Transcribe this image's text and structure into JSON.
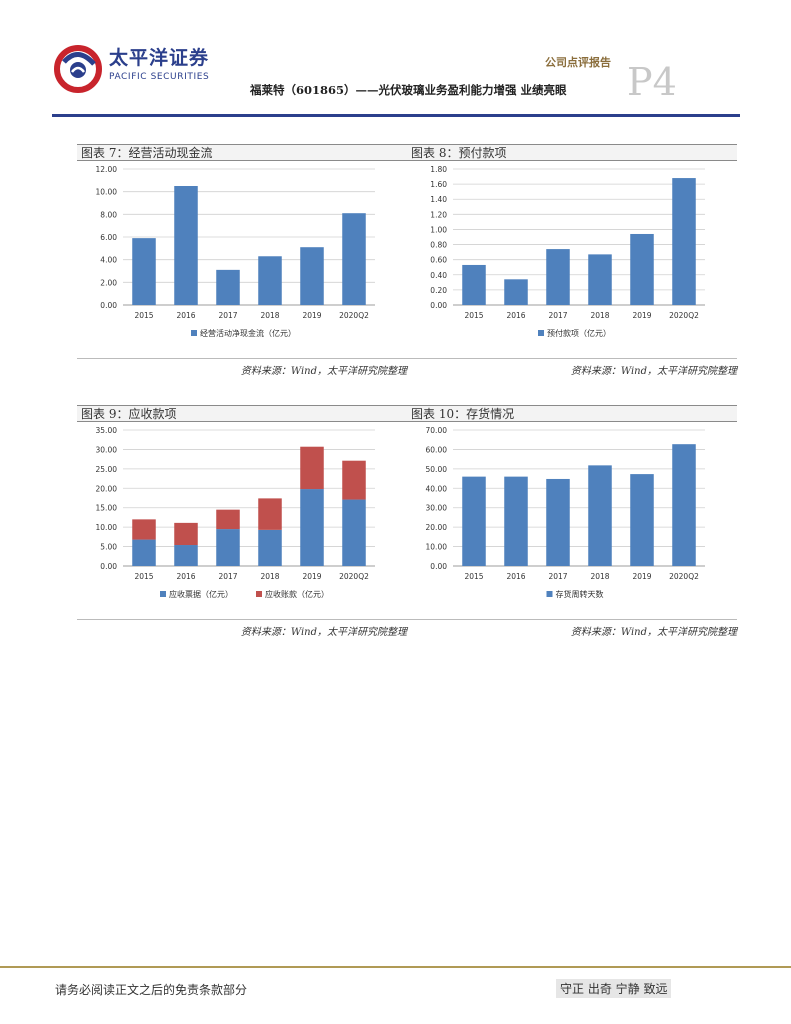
{
  "header": {
    "logo_cn": "太平洋证券",
    "logo_en": "PACIFIC SECURITIES",
    "report_type": "公司点评报告",
    "page": "P4",
    "title": "福莱特（601865）——光伏玻璃业务盈利能力增强  业绩亮眼"
  },
  "footer": {
    "disclaimer": "请务必阅读正文之后的免责条款部分",
    "motto": "守正 出奇 宁静 致远"
  },
  "colors": {
    "blue": "#4f81bd",
    "red": "#c0504d",
    "brand": "#2b3f8c"
  },
  "chart_data": [
    {
      "id": "c7",
      "type": "bar",
      "label": "图表 7：经营活动现金流",
      "source": "资料来源：Wind，太平洋研究院整理",
      "categories": [
        "2015",
        "2016",
        "2017",
        "2018",
        "2019",
        "2020Q2"
      ],
      "series": [
        {
          "name": "经营活动净现金流（亿元）",
          "color": "#4f81bd",
          "values": [
            5.9,
            10.5,
            3.1,
            4.3,
            5.1,
            8.1
          ]
        }
      ],
      "ylim": [
        0,
        12
      ],
      "yticks": [
        "0.00",
        "2.00",
        "4.00",
        "6.00",
        "8.00",
        "10.00",
        "12.00"
      ]
    },
    {
      "id": "c8",
      "type": "bar",
      "label": "图表 8：预付款项",
      "source": "资料来源：Wind，太平洋研究院整理",
      "categories": [
        "2015",
        "2016",
        "2017",
        "2018",
        "2019",
        "2020Q2"
      ],
      "series": [
        {
          "name": "预付款项（亿元）",
          "color": "#4f81bd",
          "values": [
            0.53,
            0.34,
            0.74,
            0.67,
            0.94,
            1.68
          ]
        }
      ],
      "ylim": [
        0,
        1.8
      ],
      "yticks": [
        "0.00",
        "0.20",
        "0.40",
        "0.60",
        "0.80",
        "1.00",
        "1.20",
        "1.40",
        "1.60",
        "1.80"
      ]
    },
    {
      "id": "c9",
      "type": "bar",
      "stacked": true,
      "label": "图表 9：应收款项",
      "source": "资料来源：Wind，太平洋研究院整理",
      "categories": [
        "2015",
        "2016",
        "2017",
        "2018",
        "2019",
        "2020Q2"
      ],
      "series": [
        {
          "name": "应收票据（亿元）",
          "color": "#4f81bd",
          "values": [
            6.8,
            5.4,
            9.5,
            9.3,
            19.8,
            17.1
          ]
        },
        {
          "name": "应收账款（亿元）",
          "color": "#c0504d",
          "values": [
            5.2,
            5.7,
            5.0,
            8.1,
            10.9,
            10.0
          ]
        }
      ],
      "ylim": [
        0,
        35
      ],
      "yticks": [
        "0.00",
        "5.00",
        "10.00",
        "15.00",
        "20.00",
        "25.00",
        "30.00",
        "35.00"
      ]
    },
    {
      "id": "c10",
      "type": "bar",
      "label": "图表 10：存货情况",
      "source": "资料来源：Wind，太平洋研究院整理",
      "categories": [
        "2015",
        "2016",
        "2017",
        "2018",
        "2019",
        "2020Q2"
      ],
      "series": [
        {
          "name": "存货周转天数",
          "color": "#4f81bd",
          "values": [
            46.0,
            46.0,
            44.8,
            51.8,
            47.3,
            62.7
          ]
        }
      ],
      "ylim": [
        0,
        70
      ],
      "yticks": [
        "0.00",
        "10.00",
        "20.00",
        "30.00",
        "40.00",
        "50.00",
        "60.00",
        "70.00"
      ]
    }
  ]
}
